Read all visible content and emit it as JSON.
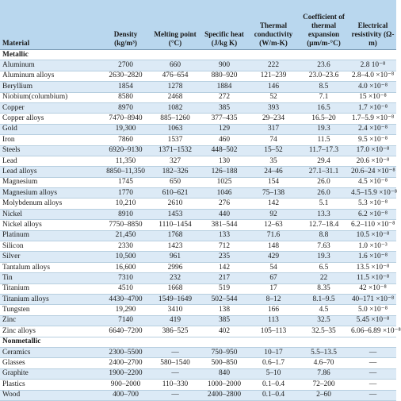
{
  "headers": [
    "Material",
    "Density (kg/m³)",
    "Melting point (°C)",
    "Specific heat (J/kg K)",
    "Thermal conductivity (W/m-K)",
    "Coefficient of thermal expansion (μm/m-°C)",
    "Electrical resistivity (Ω-m)"
  ],
  "sections": [
    {
      "title": "Metallic",
      "rows": [
        [
          "Aluminum",
          "2700",
          "660",
          "900",
          "222",
          "23.6",
          "2.8 10⁻⁸"
        ],
        [
          "Aluminum alloys",
          "2630–2820",
          "476–654",
          "880–920",
          "121–239",
          "23.0–23.6",
          "2.8–4.0 ×10⁻⁸"
        ],
        [
          "Beryllium",
          "1854",
          "1278",
          "1884",
          "146",
          "8.5",
          "4.0 ×10⁻⁸"
        ],
        [
          "Niobium(columbium)",
          "8580",
          "2468",
          "272",
          "52",
          "7.1",
          "15 ×10⁻⁸"
        ],
        [
          "Copper",
          "8970",
          "1082",
          "385",
          "393",
          "16.5",
          "1.7 ×10⁻⁸"
        ],
        [
          "Copper alloys",
          "7470–8940",
          "885–1260",
          "377–435",
          "29–234",
          "16.5–20",
          "1.7–5.9 ×10⁻⁸"
        ],
        [
          "Gold",
          "19,300",
          "1063",
          "129",
          "317",
          "19.3",
          "2.4 ×10⁻⁸"
        ],
        [
          "Iron",
          "7860",
          "1537",
          "460",
          "74",
          "11.5",
          "9.5 ×10⁻⁸"
        ],
        [
          "Steels",
          "6920–9130",
          "1371–1532",
          "448–502",
          "15–52",
          "11.7–17.3",
          "17.0 ×10⁻⁸"
        ],
        [
          "Lead",
          "11,350",
          "327",
          "130",
          "35",
          "29.4",
          "20.6 ×10⁻⁸"
        ],
        [
          "Lead alloys",
          "8850–11,350",
          "182–326",
          "126–188",
          "24–46",
          "27.1–31.1",
          "20.6–24 ×10⁻⁸"
        ],
        [
          "Magnesium",
          "1745",
          "650",
          "1025",
          "154",
          "26.0",
          "4.5 ×10⁻⁸"
        ],
        [
          "Magnesium alloys",
          "1770",
          "610–621",
          "1046",
          "75–138",
          "26.0",
          "4.5–15.9 ×10⁻⁸"
        ],
        [
          "Molybdenum alloys",
          "10,210",
          "2610",
          "276",
          "142",
          "5.1",
          "5.3 ×10⁻⁸"
        ],
        [
          "Nickel",
          "8910",
          "1453",
          "440",
          "92",
          "13.3",
          "6.2 ×10⁻⁸"
        ],
        [
          "Nickel alloys",
          "7750–8850",
          "1110–1454",
          "381–544",
          "12–63",
          "12.7–18.4",
          "6.2–110 ×10⁻⁸"
        ],
        [
          "Platinum",
          "21,450",
          "1768",
          "133",
          "71.6",
          "8.8",
          "10.5 ×10⁻⁸"
        ],
        [
          "Silicon",
          "2330",
          "1423",
          "712",
          "148",
          "7.63",
          "1.0 ×10⁻³"
        ],
        [
          "Silver",
          "10,500",
          "961",
          "235",
          "429",
          "19.3",
          "1.6 ×10⁻⁸"
        ],
        [
          "Tantalum alloys",
          "16,600",
          "2996",
          "142",
          "54",
          "6.5",
          "13.5 ×10⁻⁸"
        ],
        [
          "Tin",
          "7310",
          "232",
          "217",
          "67",
          "22",
          "11.5 ×10⁻⁸"
        ],
        [
          "Titanium",
          "4510",
          "1668",
          "519",
          "17",
          "8.35",
          "42 ×10⁻⁸"
        ],
        [
          "Titanium alloys",
          "4430–4700",
          "1549–1649",
          "502–544",
          "8–12",
          "8.1–9.5",
          "40–171 ×10⁻⁸"
        ],
        [
          "Tungsten",
          "19,290",
          "3410",
          "138",
          "166",
          "4.5",
          "5.0 ×10⁻⁸"
        ],
        [
          "Zinc",
          "7140",
          "419",
          "385",
          "113",
          "32.5",
          "5.45 ×10⁻⁸"
        ],
        [
          "Zinc alloys",
          "6640–7200",
          "386–525",
          "402",
          "105–113",
          "32.5–35",
          "6.06–6.89 ×10⁻⁸"
        ]
      ]
    },
    {
      "title": "Nonmetallic",
      "rows": [
        [
          "Ceramics",
          "2300–5500",
          "—",
          "750–950",
          "10–17",
          "5.5–13.5",
          "—"
        ],
        [
          "Glasses",
          "2400–2700",
          "580–1540",
          "500–850",
          "0.6–1.7",
          "4.6–70",
          "—"
        ],
        [
          "Graphite",
          "1900–2200",
          "—",
          "840",
          "5–10",
          "7.86",
          "—"
        ],
        [
          "Plastics",
          "900–2000",
          "110–330",
          "1000–2000",
          "0.1–0.4",
          "72–200",
          "—"
        ],
        [
          "Wood",
          "400–700",
          "—",
          "2400–2800",
          "0.1–0.4",
          "2–60",
          "—"
        ]
      ]
    }
  ]
}
